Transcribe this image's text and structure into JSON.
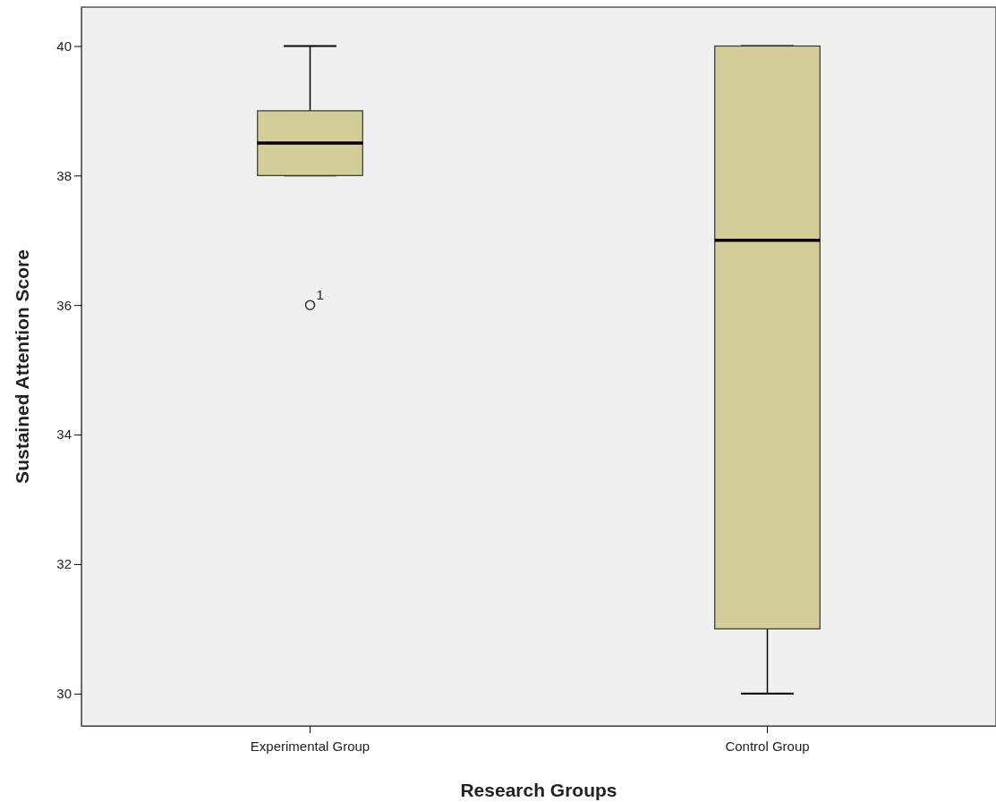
{
  "chart_data": {
    "type": "box",
    "xlabel": "Research Groups",
    "ylabel": "Sustained Attention Score",
    "categories": [
      "Experimental Group",
      "Control Group"
    ],
    "boxes": [
      {
        "low": 38,
        "q1": 38,
        "median": 38.5,
        "q3": 39,
        "high": 40,
        "outliers": [
          36
        ]
      },
      {
        "low": 30,
        "q1": 31,
        "median": 37,
        "q3": 40,
        "high": 40
      }
    ],
    "color": "#d3ce97",
    "ylim": [
      29.5,
      40.6
    ],
    "yticks": [
      30,
      32,
      34,
      36,
      38,
      40
    ],
    "annotations": [
      "1"
    ],
    "grid": false
  }
}
